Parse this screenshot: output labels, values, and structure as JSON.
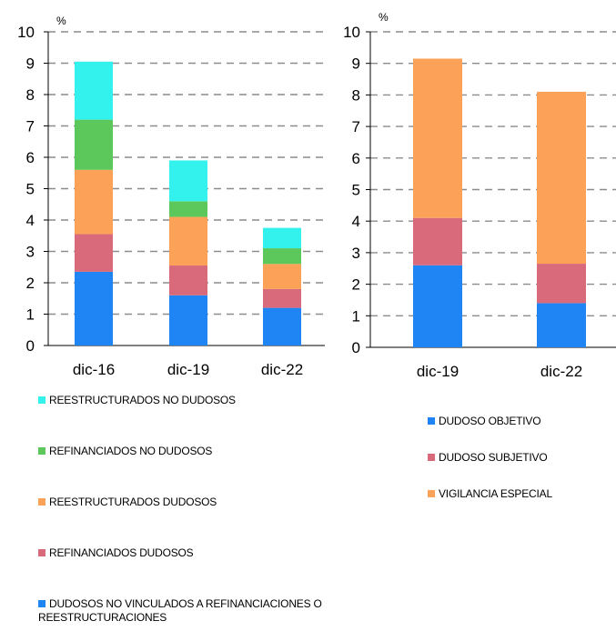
{
  "chart_data": [
    {
      "type": "bar",
      "stacked": true,
      "unit_label": "%",
      "categories": [
        "dic-16",
        "dic-19",
        "dic-22"
      ],
      "ylim": [
        0,
        10
      ],
      "yticks": [
        "0",
        "1",
        "2",
        "3",
        "4",
        "5",
        "6",
        "7",
        "8",
        "9",
        "10"
      ],
      "grid": "dashed horizontal",
      "series": [
        {
          "name": "DUDOSOS NO VINCULADOS A REFINANCIACIONES O REESTRUCTURACIONES",
          "color": "#1f85f5",
          "values": [
            2.35,
            1.6,
            1.2
          ]
        },
        {
          "name": "REFINANCIADOS DUDOSOS",
          "color": "#d96a7c",
          "values": [
            1.2,
            0.95,
            0.6
          ]
        },
        {
          "name": "REESTRUCTURADOS DUDOSOS",
          "color": "#fba258",
          "values": [
            2.05,
            1.55,
            0.8
          ]
        },
        {
          "name": "REFINANCIADOS NO DUDOSOS",
          "color": "#5cc85c",
          "values": [
            1.6,
            0.5,
            0.5
          ]
        },
        {
          "name": "REESTRUCTURADOS NO DUDOSOS",
          "color": "#33f2ee",
          "values": [
            1.85,
            1.3,
            0.65
          ]
        }
      ],
      "legend_order": [
        4,
        3,
        2,
        1,
        0
      ]
    },
    {
      "type": "bar",
      "stacked": true,
      "unit_label": "%",
      "categories": [
        "dic-19",
        "dic-22"
      ],
      "ylim": [
        0,
        10
      ],
      "yticks": [
        "0",
        "1",
        "2",
        "3",
        "4",
        "5",
        "6",
        "7",
        "8",
        "9",
        "10"
      ],
      "grid": "dashed horizontal",
      "series": [
        {
          "name": "DUDOSO OBJETIVO",
          "color": "#1f85f5",
          "values": [
            2.6,
            1.4
          ]
        },
        {
          "name": "DUDOSO SUBJETIVO",
          "color": "#d96a7c",
          "values": [
            1.5,
            1.25
          ]
        },
        {
          "name": "VIGILANCIA ESPECIAL",
          "color": "#fba258",
          "values": [
            5.05,
            5.45
          ]
        }
      ],
      "legend_order": [
        0,
        1,
        2
      ]
    }
  ]
}
